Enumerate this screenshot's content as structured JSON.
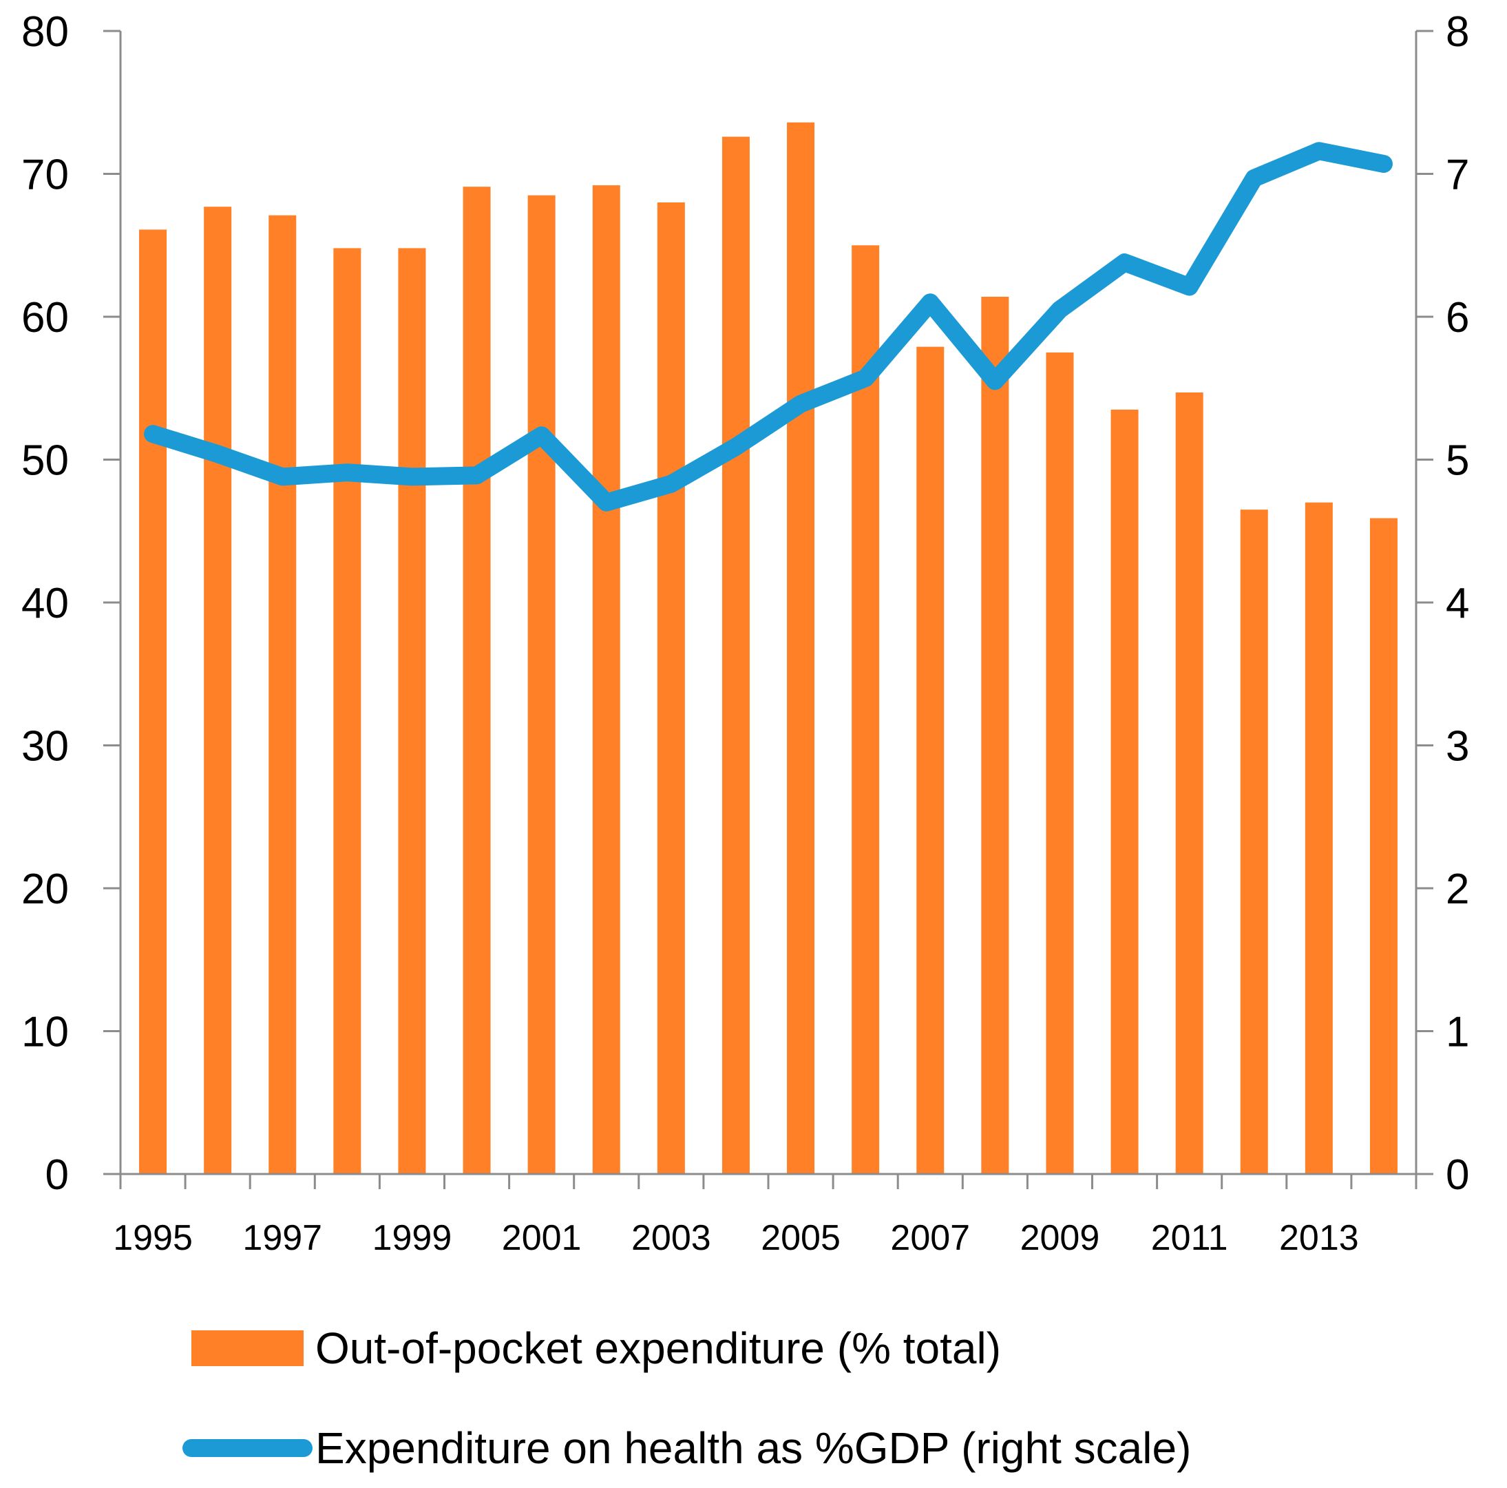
{
  "chart_data": {
    "type": "bar",
    "categories": [
      "1995",
      "1996",
      "1997",
      "1998",
      "1999",
      "2000",
      "2001",
      "2002",
      "2003",
      "2004",
      "2005",
      "2006",
      "2007",
      "2008",
      "2009",
      "2010",
      "2011",
      "2012",
      "2013",
      "2014"
    ],
    "x_tick_labels": [
      "1995",
      "1997",
      "1999",
      "2001",
      "2003",
      "2005",
      "2007",
      "2009",
      "2011",
      "2013"
    ],
    "series": [
      {
        "name": "Out-of-pocket expenditure (% total)",
        "type": "bar",
        "axis": "left",
        "color": "#FF8026",
        "values": [
          66.1,
          67.7,
          67.1,
          64.8,
          64.8,
          69.1,
          68.5,
          69.2,
          68.0,
          72.6,
          73.6,
          65.0,
          57.9,
          61.4,
          57.5,
          53.5,
          54.7,
          46.5,
          47.0,
          45.9
        ]
      },
      {
        "name": "Expenditure on health as %GDP (right scale)",
        "type": "line",
        "axis": "right",
        "color": "#1B9AD6",
        "values": [
          5.18,
          5.04,
          4.88,
          4.91,
          4.88,
          4.89,
          5.17,
          4.7,
          4.83,
          5.09,
          5.39,
          5.57,
          6.1,
          5.55,
          6.05,
          6.38,
          6.21,
          6.97,
          7.16,
          7.07
        ]
      }
    ],
    "y_left": {
      "min": 0,
      "max": 80,
      "ticks": [
        0,
        10,
        20,
        30,
        40,
        50,
        60,
        70,
        80
      ]
    },
    "y_right": {
      "min": 0,
      "max": 8,
      "ticks": [
        0,
        1,
        2,
        3,
        4,
        5,
        6,
        7,
        8
      ]
    },
    "grid": false,
    "legend_position": "bottom"
  }
}
